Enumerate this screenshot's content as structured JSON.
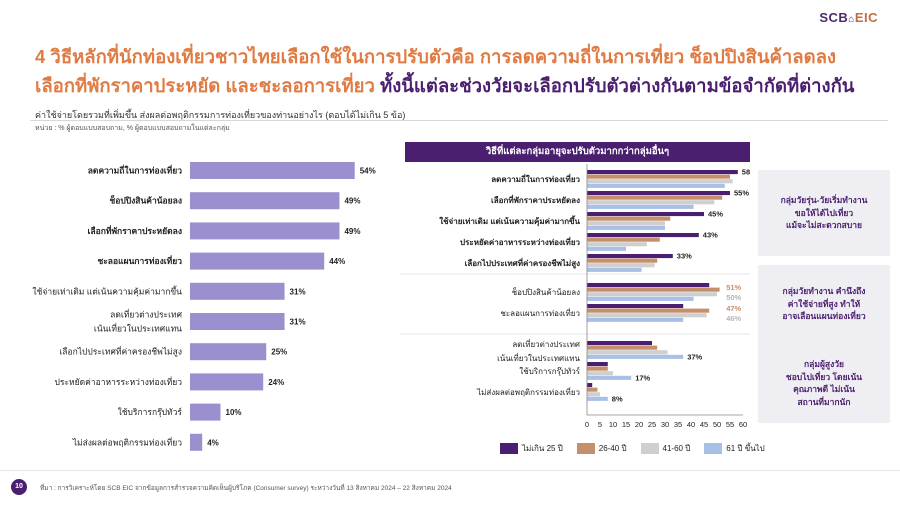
{
  "brand": {
    "scb": "SCB",
    "eic": "EIC"
  },
  "title": {
    "part1": "4 วิธีหลักที่นักท่องเที่ยวชาวไทยเลือกใช้ในการปรับตัวคือ การลดความถี่ในการเที่ยว ช็อปปิงสินค้าลดลง เลือกที่พักราคาประหยัด และชะลอการเที่ยว ",
    "part2": "ทั้งนี้แต่ละช่วงวัยจะเลือกปรับตัวต่างกันตามข้อจำกัดที่ต่างกัน"
  },
  "subtitle": "ค่าใช้จ่ายโดยรวมที่เพิ่มขึ้น ส่งผลต่อพฤติกรรมการท่องเที่ยวของท่านอย่างไร (ตอบได้ไม่เกิน 5 ข้อ)",
  "unit": "หน่วย : % ผู้ตอบแบบสอบถาม, % ผู้ตอบแบบสอบถามในแต่ละกลุ่ม",
  "panel_header": "วิธีที่แต่ละกลุ่มอายุจะปรับตัวมากกว่ากลุ่มอื่นๆ",
  "notes": [
    {
      "lines": [
        "กลุ่มวัยรุ่น-วัยเริ่มทำงาน",
        "ขอให้ได้ไปเที่ยว",
        "แม้จะไม่สะดวกสบาย"
      ]
    },
    {
      "lines": [
        "กลุ่มวัยทำงาน คำนึงถึง",
        "ค่าใช้จ่ายที่สูง ทำให้",
        "อาจเลือนแผนท่องเที่ยว"
      ]
    },
    {
      "lines": [
        "กลุ่มผู้สูงวัย",
        "ชอบไปเที่ยว โดยเน้น",
        "คุณภาพดี ไม่เน้น",
        "สถานที่มากนัก"
      ]
    }
  ],
  "source": "ที่มา : การวิเคราะห์โดย SCB EIC จากข้อมูลการสำรวจความคิดเห็นผู้บริโภค (Consumer survey) ระหว่างวันที่ 13 สิงหาคม 2024 – 22 สิงหาคม 2024",
  "page_number": "10",
  "chart_data": [
    {
      "type": "bar",
      "orientation": "horizontal",
      "color": "#9b8fd0",
      "categories": [
        [
          "ลดความถี่ในการท่องเที่ยว"
        ],
        [
          "ช็อปปิงสินค้าน้อยลง"
        ],
        [
          "เลือกที่พักราคาประหยัดลง"
        ],
        [
          "ชะลอแผนการท่องเที่ยว"
        ],
        [
          "ใช้จ่ายเท่าเดิม แต่เน้นความคุ้มค่ามากขึ้น"
        ],
        [
          "ลดเที่ยวต่างประเทศ",
          "เน้นเที่ยวในประเทศแทน"
        ],
        [
          "เลือกไปประเทศที่ค่าครองชีพไม่สูง"
        ],
        [
          "ประหยัดค่าอาหารระหว่างท่องเที่ยว"
        ],
        [
          "ใช้บริการกรุ๊ปทัวร์"
        ],
        [
          "ไม่ส่งผลต่อพฤติกรรมท่องเที่ยว"
        ]
      ],
      "bold": [
        true,
        true,
        true,
        true,
        false,
        false,
        false,
        false,
        false,
        false
      ],
      "values": [
        54,
        49,
        49,
        44,
        31,
        31,
        25,
        24,
        10,
        4
      ],
      "value_labels": [
        "54%",
        "49%",
        "49%",
        "44%",
        "31%",
        "31%",
        "25%",
        "24%",
        "10%",
        "4%"
      ]
    },
    {
      "type": "bar",
      "orientation": "horizontal",
      "grouped": true,
      "xlim": [
        0,
        60
      ],
      "xticks": [
        0,
        5,
        10,
        15,
        20,
        25,
        30,
        35,
        40,
        45,
        50,
        55,
        60
      ],
      "series": [
        {
          "name": "ไม่เกิน 25 ปี",
          "color": "#4b1f6f"
        },
        {
          "name": "26-40 ปี",
          "color": "#c68f6b"
        },
        {
          "name": "41-60 ปี",
          "color": "#cfcfcf"
        },
        {
          "name": "61 ปี ขึ้นไป",
          "color": "#a9c0e6"
        }
      ],
      "groups": [
        {
          "categories": [
            {
              "label": "ลดความถี่ในการท่องเที่ยว",
              "values": [
                58,
                55,
                56,
                53
              ],
              "label_value": "58%",
              "label_series": 0
            },
            {
              "label": "เลือกที่พักราคาประหยัดลง",
              "values": [
                55,
                52,
                49,
                41
              ],
              "label_value": "55%",
              "label_series": 0
            },
            {
              "label": "ใช้จ่ายเท่าเดิม แต่เน้นความคุ้มค่ามากขึ้น",
              "values": [
                45,
                32,
                30,
                30
              ],
              "label_value": "45%",
              "label_series": 0
            },
            {
              "label": "ประหยัดค่าอาหารระหว่างท่องเที่ยว",
              "values": [
                43,
                28,
                23,
                15
              ],
              "label_value": "43%",
              "label_series": 0
            },
            {
              "label": "เลือกไปประเทศที่ค่าครองชีพไม่สูง",
              "values": [
                33,
                27,
                26,
                21
              ],
              "label_value": "33%",
              "label_series": 0
            }
          ]
        },
        {
          "categories": [
            {
              "label": "ช็อปปิงสินค้าน้อยลง",
              "values": [
                47,
                51,
                50,
                41
              ],
              "labels": [
                {
                  "series": 1,
                  "text": "51%"
                },
                {
                  "series": 2,
                  "text": "50%"
                }
              ]
            },
            {
              "label": "ชะลอแผนการท่องเที่ยว",
              "values": [
                37,
                47,
                46,
                37
              ],
              "labels": [
                {
                  "series": 1,
                  "text": "47%"
                },
                {
                  "series": 2,
                  "text": "46%"
                }
              ]
            }
          ]
        },
        {
          "categories": [
            {
              "label": "ลดเที่ยวต่างประเทศ",
              "label2": "เน้นเที่ยวในประเทศแทน",
              "values": [
                25,
                27,
                31,
                37
              ],
              "label_value": "37%",
              "label_series": 3
            },
            {
              "label": "ใช้บริการกรุ๊ปทัวร์",
              "values": [
                8,
                8,
                10,
                17
              ],
              "label_value": "17%",
              "label_series": 3
            },
            {
              "label": "ไม่ส่งผลต่อพฤติกรรมท่องเที่ยว",
              "values": [
                2,
                4,
                5,
                8
              ],
              "label_value": "8%",
              "label_series": 3
            }
          ]
        }
      ]
    }
  ]
}
